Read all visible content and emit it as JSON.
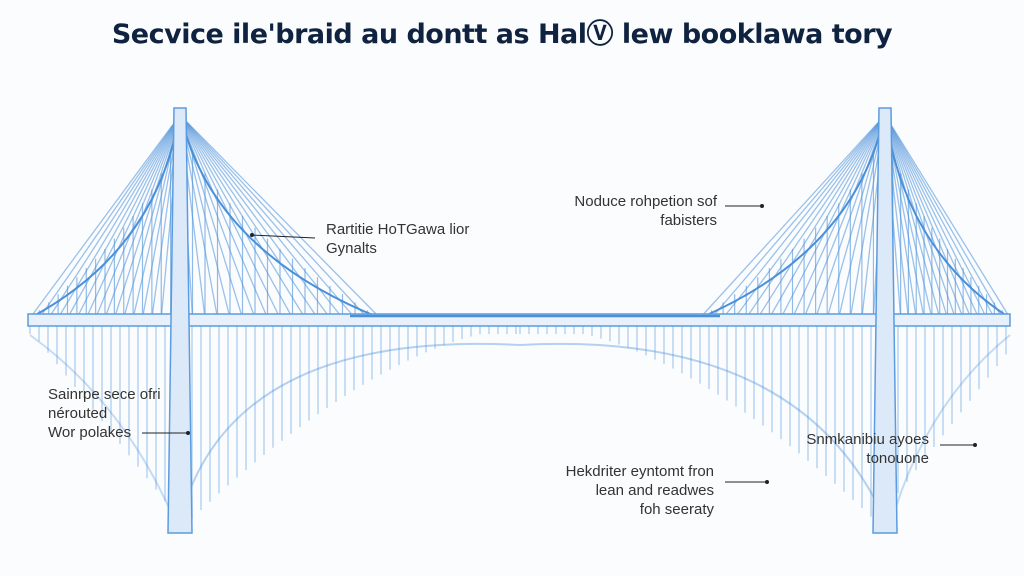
{
  "title": "Secvice ile'braid au dontt as HalⓋ lew booklawa tory",
  "colors": {
    "cable": "#4a90d9",
    "tower_fill": "#dce9f8",
    "tower_stroke": "#5b9be0",
    "title": "#0f2340",
    "text": "#333333"
  },
  "labels": [
    {
      "lines": [
        "Rartitie HoTGawa lior",
        "Gynalts"
      ]
    },
    {
      "lines": [
        "Noduce rohpetion sof",
        "fabisters"
      ]
    },
    {
      "lines": [
        "Sainrpe sece ofri",
        "nérouted",
        "Wor polakes"
      ]
    },
    {
      "lines": [
        "Snmkanibiu ayoes",
        "tonouone"
      ]
    },
    {
      "lines": [
        "Hekdriter eyntomt fron",
        "lean and readwes",
        "foh seeraty"
      ]
    }
  ]
}
